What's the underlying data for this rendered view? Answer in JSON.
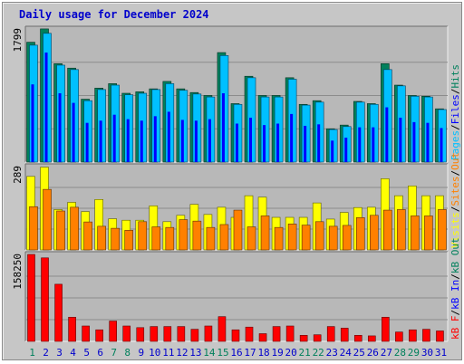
{
  "title": "Daily usage for December 2024",
  "colors": {
    "background": "#c6c6c6",
    "panel": "#b4b4b4",
    "title": "#0000cc",
    "hits": "#00805c",
    "files": "#0000ff",
    "pages": "#00c0ff",
    "visits": "#ffff00",
    "sites": "#ff8000",
    "kbf": "#ff0000",
    "kbin": "#0000ff",
    "kbout": "#00805c",
    "weekend_day": "#00805c",
    "weekday": "#0000cc"
  },
  "chart_data": [
    {
      "type": "bar",
      "panel": "top",
      "max_label": "1799",
      "ylim": [
        0,
        1799
      ],
      "categories": [
        "1",
        "2",
        "3",
        "4",
        "5",
        "6",
        "7",
        "8",
        "9",
        "10",
        "11",
        "12",
        "13",
        "14",
        "15",
        "16",
        "17",
        "18",
        "19",
        "20",
        "21",
        "22",
        "23",
        "24",
        "25",
        "26",
        "27",
        "28",
        "29",
        "30",
        "31"
      ],
      "weekend_days": [
        "1",
        "7",
        "8",
        "14",
        "15",
        "21",
        "22",
        "28",
        "29"
      ],
      "legend": [
        "Pages",
        "Files",
        "Hits"
      ],
      "series": [
        {
          "name": "Hits",
          "color": "#00805c",
          "values": [
            1620,
            1800,
            1330,
            1270,
            850,
            1000,
            1060,
            930,
            950,
            990,
            1090,
            990,
            940,
            900,
            1480,
            790,
            1160,
            900,
            900,
            1140,
            780,
            830,
            450,
            500,
            820,
            790,
            1330,
            1040,
            900,
            890,
            720
          ]
        },
        {
          "name": "Files",
          "color": "#0000ff",
          "values": [
            1050,
            1480,
            930,
            800,
            530,
            560,
            640,
            580,
            560,
            620,
            680,
            570,
            560,
            580,
            930,
            520,
            600,
            500,
            520,
            650,
            490,
            510,
            290,
            330,
            470,
            470,
            740,
            600,
            540,
            530,
            460
          ]
        },
        {
          "name": "Pages",
          "color": "#00c0ff",
          "values": [
            1580,
            1740,
            1310,
            1250,
            830,
            980,
            1040,
            910,
            930,
            980,
            1060,
            970,
            920,
            880,
            1440,
            780,
            1140,
            880,
            880,
            1120,
            770,
            810,
            440,
            480,
            810,
            780,
            1250,
            1030,
            890,
            880,
            710
          ]
        }
      ]
    },
    {
      "type": "bar",
      "panel": "middle",
      "max_label": "289",
      "ylim": [
        0,
        289
      ],
      "categories": [
        "1",
        "2",
        "3",
        "4",
        "5",
        "6",
        "7",
        "8",
        "9",
        "10",
        "11",
        "12",
        "13",
        "14",
        "15",
        "16",
        "17",
        "18",
        "19",
        "20",
        "21",
        "22",
        "23",
        "24",
        "25",
        "26",
        "27",
        "28",
        "29",
        "30",
        "31"
      ],
      "legend": [
        "Visits",
        "Sites",
        "Out"
      ],
      "series": [
        {
          "name": "Visits",
          "color": "#ffff00",
          "values": [
            255,
            287,
            140,
            165,
            133,
            175,
            108,
            103,
            103,
            153,
            98,
            120,
            158,
            123,
            148,
            113,
            188,
            183,
            113,
            113,
            113,
            163,
            107,
            130,
            147,
            148,
            247,
            188,
            222,
            188,
            188
          ]
        },
        {
          "name": "Sites",
          "color": "#ff8000",
          "values": [
            150,
            210,
            135,
            148,
            97,
            82,
            75,
            68,
            98,
            80,
            78,
            105,
            100,
            78,
            88,
            138,
            80,
            118,
            78,
            90,
            86,
            98,
            82,
            85,
            112,
            120,
            138,
            140,
            118,
            118,
            140
          ]
        }
      ]
    },
    {
      "type": "bar",
      "panel": "bottom",
      "max_label": "158250",
      "ylim": [
        0,
        158250
      ],
      "categories": [
        "1",
        "2",
        "3",
        "4",
        "5",
        "6",
        "7",
        "8",
        "9",
        "10",
        "11",
        "12",
        "13",
        "14",
        "15",
        "16",
        "17",
        "18",
        "19",
        "20",
        "21",
        "22",
        "23",
        "24",
        "25",
        "26",
        "27",
        "28",
        "29",
        "30",
        "31"
      ],
      "legend": [
        "kB F",
        "kB In",
        "kB Out"
      ],
      "series": [
        {
          "name": "kB F",
          "color": "#ff0000",
          "values": [
            158250,
            152000,
            104000,
            44000,
            28000,
            21000,
            37000,
            28000,
            25000,
            27000,
            27000,
            27000,
            22000,
            28000,
            45000,
            21000,
            26000,
            14000,
            27000,
            28000,
            11000,
            12000,
            27000,
            24000,
            11000,
            10000,
            44000,
            17000,
            21000,
            22000,
            19000
          ]
        }
      ]
    }
  ]
}
